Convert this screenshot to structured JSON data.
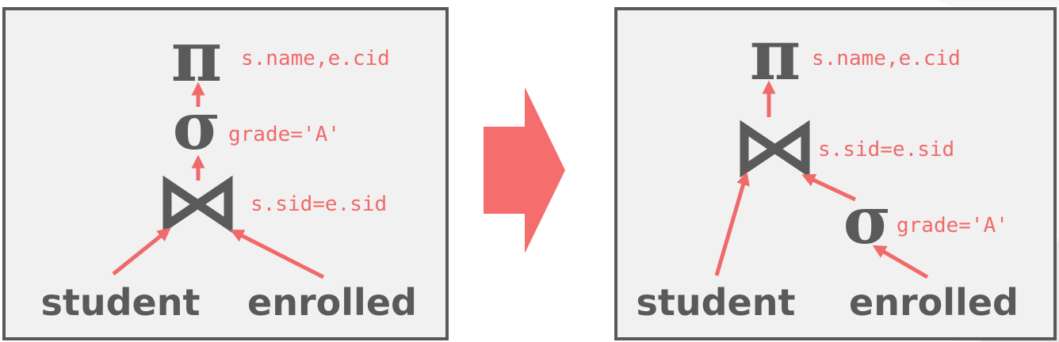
{
  "before": {
    "projection": {
      "symbol": "π",
      "condition": "s.name,e.cid"
    },
    "selection": {
      "symbol": "σ",
      "condition": "grade='A'"
    },
    "join": {
      "symbol": "⋈",
      "condition": "s.sid=e.sid"
    },
    "relations": {
      "left": "student",
      "right": "enrolled"
    }
  },
  "after": {
    "projection": {
      "symbol": "π",
      "condition": "s.name,e.cid"
    },
    "join": {
      "symbol": "⋈",
      "condition": "s.sid=e.sid"
    },
    "selection": {
      "symbol": "σ",
      "condition": "grade='A'"
    },
    "relations": {
      "left": "student",
      "right": "enrolled"
    }
  },
  "colors": {
    "accent": "#f06a6a",
    "operator": "#5a5a5a",
    "panel_bg": "#f1f1f1",
    "panel_border": "#585858"
  }
}
